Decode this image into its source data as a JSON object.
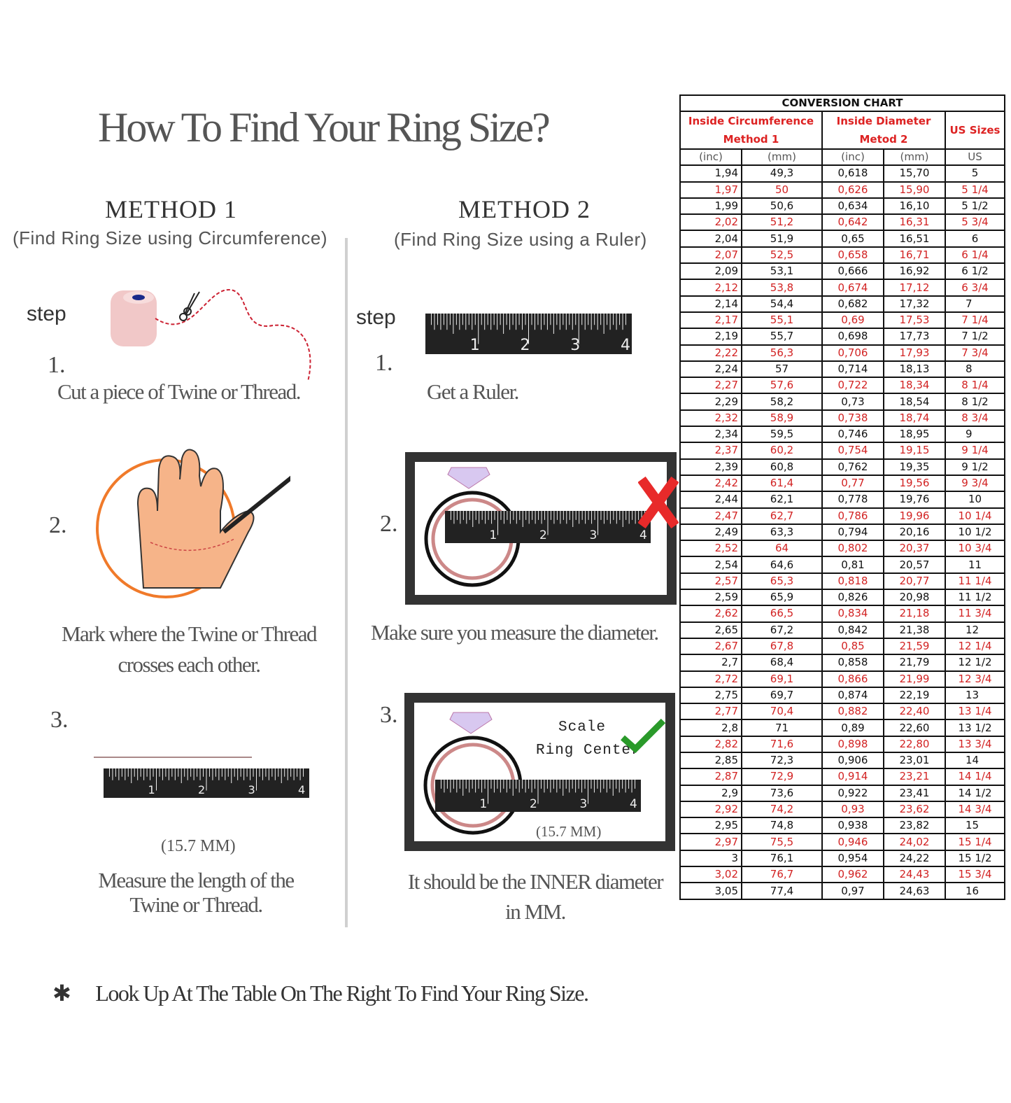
{
  "title": "How To Find Your Ring Size?",
  "method1": {
    "heading": "METHOD 1",
    "subtitle": "(Find Ring Size using Circumference)",
    "step_label": "step",
    "steps": [
      {
        "number": "1.",
        "caption": "Cut a piece of  Twine or Thread."
      },
      {
        "number": "2.",
        "caption_line1": "Mark where the Twine or Thread",
        "caption_line2": "crosses each other."
      },
      {
        "number": "3.",
        "measurement": "(15.7 MM)",
        "caption_line1": "Measure the length of the",
        "caption_line2": "Twine or Thread."
      }
    ]
  },
  "method2": {
    "heading": "METHOD 2",
    "subtitle": "(Find Ring Size using a Ruler)",
    "step_label": "step",
    "steps": [
      {
        "number": "1.",
        "caption": "Get a Ruler."
      },
      {
        "number": "2.",
        "caption": "Make sure you measure the diameter."
      },
      {
        "number": "3.",
        "scale_label": "Scale",
        "ring_center_label": "Ring Center",
        "measurement": "(15.7 MM)",
        "caption_line1": "It should be the INNER diameter",
        "caption_line2": "in MM."
      }
    ]
  },
  "ruler_labels": [
    "1",
    "2",
    "3",
    "4"
  ],
  "footer": {
    "icon": "asterisk-icon",
    "text": "Look Up  At The Table On The Right To Find Your Ring Size."
  },
  "colors": {
    "accent_red": "#d22222",
    "text_dark": "#111111",
    "ring_orange": "#f07a2a",
    "check_green": "#2a9a2a"
  },
  "conversion_chart": {
    "title": "CONVERSION CHART",
    "group_headers": {
      "circumference_line1": "Inside Circumference",
      "circumference_line2": "Method 1",
      "diameter_line1": "Inside Diameter",
      "diameter_line2": "Metod 2",
      "us": "US Sizes"
    },
    "unit_headers": [
      "(inc)",
      "(mm)",
      "(inc)",
      "(mm)",
      "US"
    ],
    "rows": [
      [
        "1,94",
        "49,3",
        "0,618",
        "15,70",
        "5"
      ],
      [
        "1,97",
        "50",
        "0,626",
        "15,90",
        "5 1/4"
      ],
      [
        "1,99",
        "50,6",
        "0,634",
        "16,10",
        "5 1/2"
      ],
      [
        "2,02",
        "51,2",
        "0,642",
        "16,31",
        "5 3/4"
      ],
      [
        "2,04",
        "51,9",
        "0,65",
        "16,51",
        "6"
      ],
      [
        "2,07",
        "52,5",
        "0,658",
        "16,71",
        "6 1/4"
      ],
      [
        "2,09",
        "53,1",
        "0,666",
        "16,92",
        "6 1/2"
      ],
      [
        "2,12",
        "53,8",
        "0,674",
        "17,12",
        "6 3/4"
      ],
      [
        "2,14",
        "54,4",
        "0,682",
        "17,32",
        "7"
      ],
      [
        "2,17",
        "55,1",
        "0,69",
        "17,53",
        "7 1/4"
      ],
      [
        "2,19",
        "55,7",
        "0,698",
        "17,73",
        "7 1/2"
      ],
      [
        "2,22",
        "56,3",
        "0,706",
        "17,93",
        "7 3/4"
      ],
      [
        "2,24",
        "57",
        "0,714",
        "18,13",
        "8"
      ],
      [
        "2,27",
        "57,6",
        "0,722",
        "18,34",
        "8 1/4"
      ],
      [
        "2,29",
        "58,2",
        "0,73",
        "18,54",
        "8 1/2"
      ],
      [
        "2,32",
        "58,9",
        "0,738",
        "18,74",
        "8 3/4"
      ],
      [
        "2,34",
        "59,5",
        "0,746",
        "18,95",
        "9"
      ],
      [
        "2,37",
        "60,2",
        "0,754",
        "19,15",
        "9 1/4"
      ],
      [
        "2,39",
        "60,8",
        "0,762",
        "19,35",
        "9 1/2"
      ],
      [
        "2,42",
        "61,4",
        "0,77",
        "19,56",
        "9 3/4"
      ],
      [
        "2,44",
        "62,1",
        "0,778",
        "19,76",
        "10"
      ],
      [
        "2,47",
        "62,7",
        "0,786",
        "19,96",
        "10 1/4"
      ],
      [
        "2,49",
        "63,3",
        "0,794",
        "20,16",
        "10 1/2"
      ],
      [
        "2,52",
        "64",
        "0,802",
        "20,37",
        "10 3/4"
      ],
      [
        "2,54",
        "64,6",
        "0,81",
        "20,57",
        "11"
      ],
      [
        "2,57",
        "65,3",
        "0,818",
        "20,77",
        "11 1/4"
      ],
      [
        "2,59",
        "65,9",
        "0,826",
        "20,98",
        "11 1/2"
      ],
      [
        "2,62",
        "66,5",
        "0,834",
        "21,18",
        "11 3/4"
      ],
      [
        "2,65",
        "67,2",
        "0,842",
        "21,38",
        "12"
      ],
      [
        "2,67",
        "67,8",
        "0,85",
        "21,59",
        "12 1/4"
      ],
      [
        "2,7",
        "68,4",
        "0,858",
        "21,79",
        "12 1/2"
      ],
      [
        "2,72",
        "69,1",
        "0,866",
        "21,99",
        "12 3/4"
      ],
      [
        "2,75",
        "69,7",
        "0,874",
        "22,19",
        "13"
      ],
      [
        "2,77",
        "70,4",
        "0,882",
        "22,40",
        "13 1/4"
      ],
      [
        "2,8",
        "71",
        "0,89",
        "22,60",
        "13 1/2"
      ],
      [
        "2,82",
        "71,6",
        "0,898",
        "22,80",
        "13 3/4"
      ],
      [
        "2,85",
        "72,3",
        "0,906",
        "23,01",
        "14"
      ],
      [
        "2,87",
        "72,9",
        "0,914",
        "23,21",
        "14 1/4"
      ],
      [
        "2,9",
        "73,6",
        "0,922",
        "23,41",
        "14 1/2"
      ],
      [
        "2,92",
        "74,2",
        "0,93",
        "23,62",
        "14 3/4"
      ],
      [
        "2,95",
        "74,8",
        "0,938",
        "23,82",
        "15"
      ],
      [
        "2,97",
        "75,5",
        "0,946",
        "24,02",
        "15 1/4"
      ],
      [
        "3",
        "76,1",
        "0,954",
        "24,22",
        "15 1/2"
      ],
      [
        "3,02",
        "76,7",
        "0,962",
        "24,43",
        "15 3/4"
      ],
      [
        "3,05",
        "77,4",
        "0,97",
        "24,63",
        "16"
      ]
    ]
  }
}
